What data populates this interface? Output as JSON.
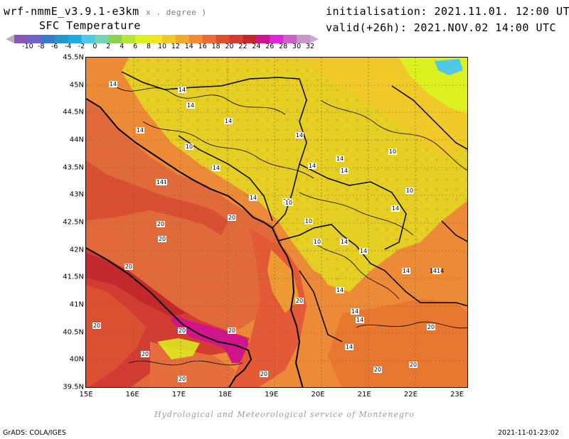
{
  "header": {
    "model": "wrf-nmmE_v3.9.1-e3km",
    "units": "x . degree )",
    "field": "SFC Temperature",
    "init": "initialisation: 2021.11.01. 12:00 UTC",
    "valid": "valid(+26h): 2021.NOV.02 14:00 UTC"
  },
  "colorbar": {
    "ticks": [
      "-10",
      "-8",
      "-6",
      "-4",
      "-2",
      "0",
      "2",
      "4",
      "6",
      "8",
      "10",
      "12",
      "14",
      "16",
      "18",
      "20",
      "22",
      "24",
      "26",
      "28",
      "30",
      "32"
    ],
    "colors": [
      "#b4b4b4",
      "#8a58b4",
      "#6e64c8",
      "#3c78c8",
      "#2896c8",
      "#1eaadc",
      "#50c8e6",
      "#78d2b4",
      "#8cd250",
      "#b4e632",
      "#dcf01e",
      "#f0e61e",
      "#f0c828",
      "#f0aa32",
      "#f08c32",
      "#e66e3c",
      "#dc5032",
      "#d23c32",
      "#c3282d",
      "#d2148c",
      "#dc28dc",
      "#c864c8",
      "#c896c8",
      "#cdaad2"
    ]
  },
  "map": {
    "lat_labels": [
      "45.5N",
      "45N",
      "44.5N",
      "44N",
      "43.5N",
      "43N",
      "42.5N",
      "42N",
      "41.5N",
      "41N",
      "40.5N",
      "40N",
      "39.5N"
    ],
    "lon_labels": [
      "15E",
      "16E",
      "17E",
      "18E",
      "19E",
      "20E",
      "21E",
      "22E",
      "23E"
    ],
    "contour_labels": [
      "14",
      "14",
      "14",
      "14",
      "14",
      "10",
      "14",
      "14",
      "14",
      "14",
      "14",
      "14",
      "10",
      "14",
      "10",
      "10",
      "10",
      "14",
      "14",
      "14",
      "14",
      "14",
      "1414",
      "14",
      "14",
      "14",
      "14",
      "20",
      "20",
      "20",
      "20",
      "20",
      "20",
      "20",
      "20",
      "20",
      "20",
      "20",
      "20",
      "20",
      "20",
      "10",
      "10"
    ]
  },
  "footer": {
    "credit": "Hydrological and Meteorological service of Montenegro",
    "grads": "GrADS: COLA/IGES",
    "timestamp": "2021-11-01-23:02"
  }
}
